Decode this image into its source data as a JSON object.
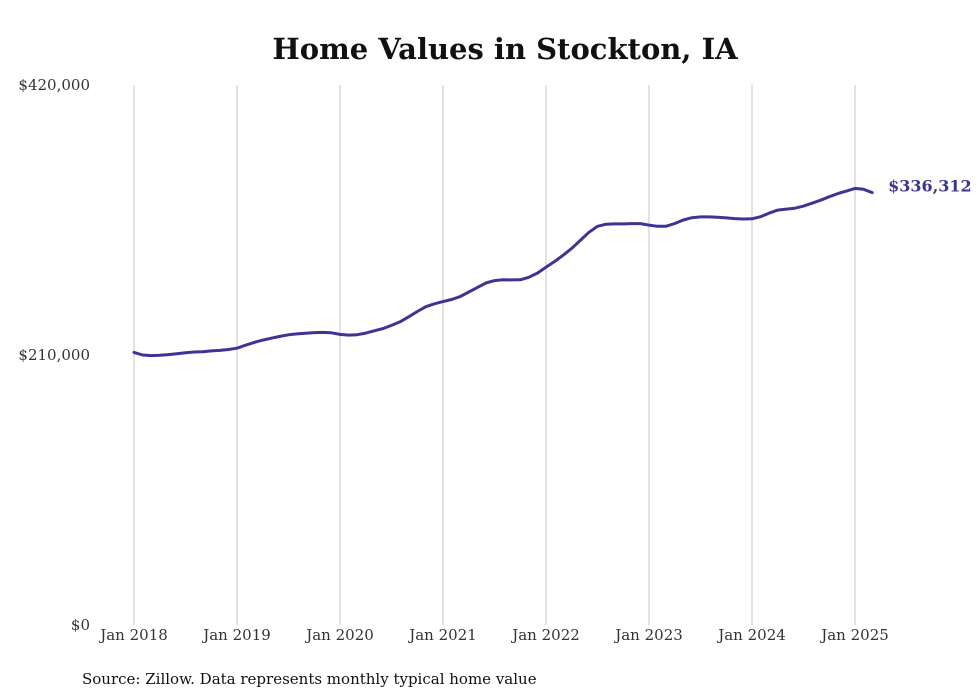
{
  "chart_data": {
    "type": "line",
    "title": "Home Values in Stockton, IA",
    "xlabel": "",
    "ylabel": "",
    "y_ticks": [
      {
        "value": 0,
        "label": "$0"
      },
      {
        "value": 210000,
        "label": "$210,000"
      },
      {
        "value": 420000,
        "label": "$420,000"
      }
    ],
    "ylim": [
      0,
      420000
    ],
    "x_ticks": [
      {
        "value": "2018-01",
        "label": "Jan 2018"
      },
      {
        "value": "2019-01",
        "label": "Jan 2019"
      },
      {
        "value": "2020-01",
        "label": "Jan 2020"
      },
      {
        "value": "2021-01",
        "label": "Jan 2021"
      },
      {
        "value": "2022-01",
        "label": "Jan 2022"
      },
      {
        "value": "2023-01",
        "label": "Jan 2023"
      },
      {
        "value": "2024-01",
        "label": "Jan 2024"
      },
      {
        "value": "2025-01",
        "label": "Jan 2025"
      }
    ],
    "xlim": [
      "2018-01",
      "2025-03"
    ],
    "grid": "vertical",
    "series": [
      {
        "color": "#3d3595",
        "end_label": "$336,312",
        "x": [
          "2018-01",
          "2018-02",
          "2018-03",
          "2018-04",
          "2018-05",
          "2018-06",
          "2018-07",
          "2018-08",
          "2018-09",
          "2018-10",
          "2018-11",
          "2018-12",
          "2019-01",
          "2019-02",
          "2019-03",
          "2019-04",
          "2019-05",
          "2019-06",
          "2019-07",
          "2019-08",
          "2019-09",
          "2019-10",
          "2019-11",
          "2019-12",
          "2020-01",
          "2020-02",
          "2020-03",
          "2020-04",
          "2020-05",
          "2020-06",
          "2020-07",
          "2020-08",
          "2020-09",
          "2020-10",
          "2020-11",
          "2020-12",
          "2021-01",
          "2021-02",
          "2021-03",
          "2021-04",
          "2021-05",
          "2021-06",
          "2021-07",
          "2021-08",
          "2021-09",
          "2021-10",
          "2021-11",
          "2021-12",
          "2022-01",
          "2022-02",
          "2022-03",
          "2022-04",
          "2022-05",
          "2022-06",
          "2022-07",
          "2022-08",
          "2022-09",
          "2022-10",
          "2022-11",
          "2022-12",
          "2023-01",
          "2023-02",
          "2023-03",
          "2023-04",
          "2023-05",
          "2023-06",
          "2023-07",
          "2023-08",
          "2023-09",
          "2023-10",
          "2023-11",
          "2023-12",
          "2024-01",
          "2024-02",
          "2024-03",
          "2024-04",
          "2024-05",
          "2024-06",
          "2024-07",
          "2024-08",
          "2024-09",
          "2024-10",
          "2024-11",
          "2024-12",
          "2025-01",
          "2025-02",
          "2025-03"
        ],
        "values": [
          212000,
          210000,
          209500,
          209800,
          210300,
          211000,
          211800,
          212300,
          212600,
          213200,
          213600,
          214300,
          215300,
          217600,
          219800,
          221600,
          223100,
          224500,
          225700,
          226400,
          226900,
          227400,
          227600,
          227300,
          226000,
          225500,
          225800,
          227000,
          228800,
          230500,
          233000,
          235800,
          239700,
          243800,
          247600,
          249800,
          251500,
          253200,
          255400,
          259000,
          262400,
          266000,
          267900,
          268500,
          268400,
          268500,
          270400,
          273700,
          278300,
          282700,
          287600,
          293000,
          299100,
          305400,
          310100,
          311700,
          312000,
          312000,
          312200,
          312200,
          311000,
          310100,
          310200,
          312300,
          315000,
          316800,
          317400,
          317400,
          317200,
          316600,
          316100,
          315800,
          315900,
          317600,
          320400,
          322700,
          323500,
          324200,
          325800,
          328100,
          330400,
          333100,
          335500,
          337500,
          339600,
          338900,
          336312
        ]
      }
    ]
  },
  "source": "Source: Zillow. Data represents monthly typical home value"
}
